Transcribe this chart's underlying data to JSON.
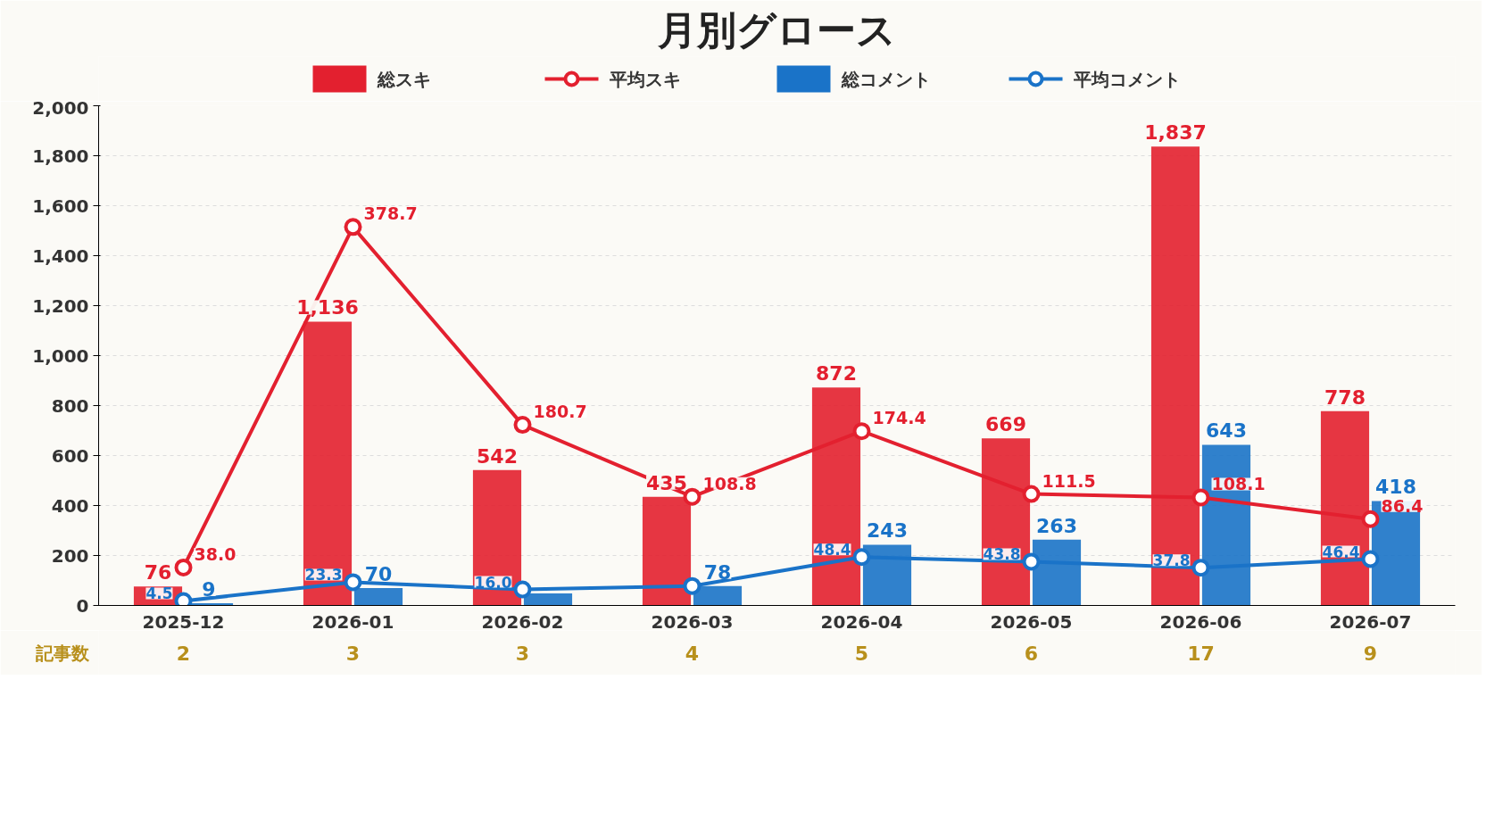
{
  "chart_data": {
    "type": "bar",
    "title": "月別グロース",
    "categories": [
      "2025-12",
      "2026-01",
      "2026-02",
      "2026-03",
      "2026-04",
      "2026-05",
      "2026-06",
      "2026-07"
    ],
    "series": [
      {
        "name": "総スキ",
        "color": "#e3202f",
        "values": [
          76,
          1136,
          542,
          435,
          872,
          669,
          1837,
          778
        ],
        "value_labels": [
          "76",
          "1,136",
          "542",
          "435",
          "872",
          "669",
          "1,837",
          "778"
        ]
      },
      {
        "name": "平均スキ",
        "type": "line",
        "axis": "y2",
        "color": "#e3202f",
        "values": [
          38.0,
          378.7,
          180.7,
          108.8,
          174.4,
          111.5,
          108.1,
          86.4
        ],
        "value_labels": [
          "38.0",
          "378.7",
          "180.7",
          "108.8",
          "174.4",
          "111.5",
          "108.1",
          "86.4"
        ]
      },
      {
        "name": "総コメント",
        "color": "#1a73c8",
        "values": [
          9,
          70,
          48,
          78,
          243,
          263,
          643,
          418
        ],
        "value_labels": [
          "9",
          "70",
          null,
          "78",
          "243",
          "263",
          "643",
          "418"
        ]
      },
      {
        "name": "平均コメント",
        "type": "line",
        "axis": "y2",
        "color": "#1a73c8",
        "values": [
          4.5,
          23.3,
          16.0,
          19.5,
          48.4,
          43.8,
          37.8,
          46.4
        ],
        "value_labels": [
          "4.5",
          "23.3",
          "16.0",
          null,
          "48.4",
          "43.8",
          "37.8",
          "46.4"
        ]
      }
    ],
    "ylim": [
      0,
      2000
    ],
    "yticks": [
      0,
      {
        "value": 200,
        "label": "200"
      },
      {
        "value": 400,
        "label": "400"
      },
      {
        "value": 600,
        "label": "600"
      },
      {
        "value": 800,
        "label": "800"
      },
      {
        "value": 1000,
        "label": "1,000"
      },
      {
        "value": 1200,
        "label": "1,200"
      },
      {
        "value": 1400,
        "label": "1,400"
      },
      {
        "value": 1600,
        "label": "1,600"
      },
      {
        "value": 1800,
        "label": "1,800"
      },
      {
        "value": 2000,
        "label": "2,000"
      }
    ],
    "y2lim": [
      0,
      500
    ],
    "grid": "y",
    "legend": "top",
    "marker": "circle",
    "line_style": "solid",
    "annotations": [
      "記事数",
      "2",
      "3",
      "3",
      "4",
      "5",
      "6",
      "17",
      "9"
    ]
  }
}
